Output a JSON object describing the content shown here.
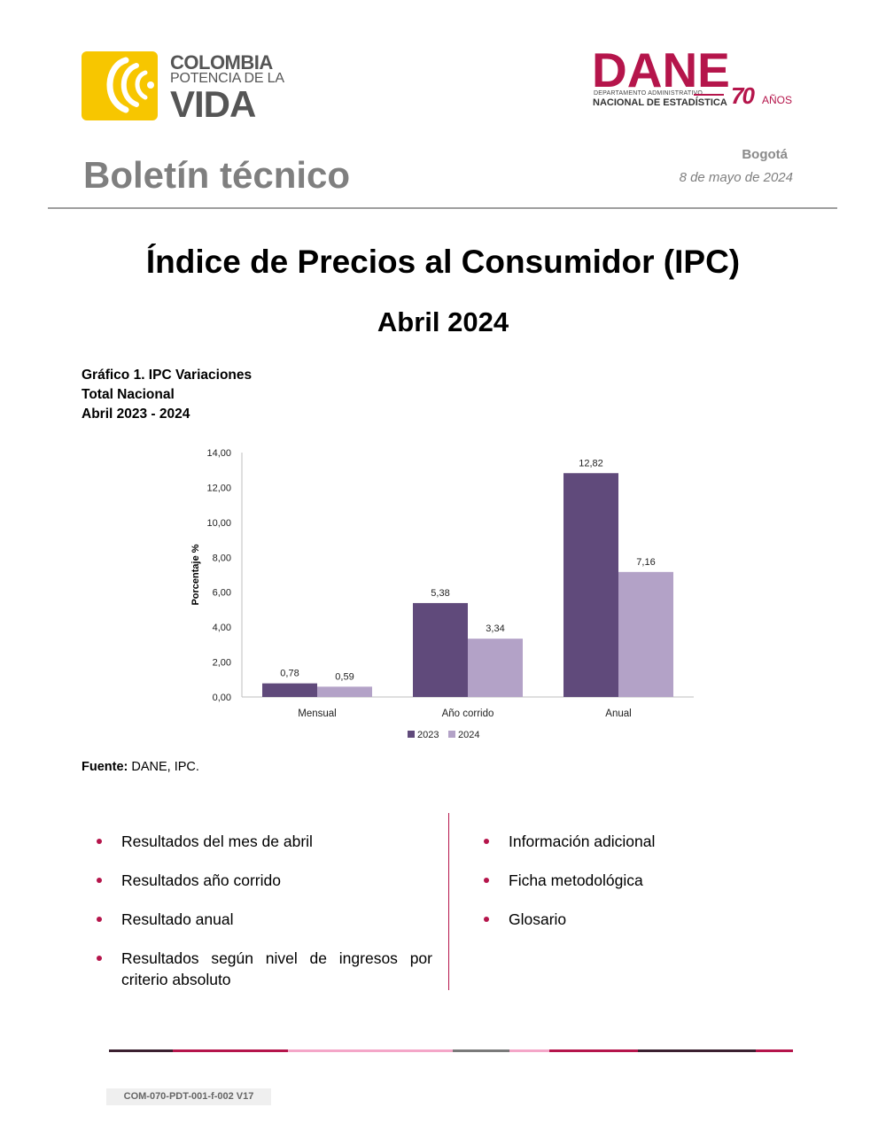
{
  "header": {
    "colombia_logo": {
      "line1": "COLOMBIA",
      "line2": "POTENCIA DE LA",
      "line3": "VIDA"
    },
    "dane_logo": {
      "name": "DANE",
      "line1": "DEPARTAMENTO ADMINISTRATIVO",
      "line2": "NACIONAL DE ESTADÍSTICA",
      "years": "70",
      "years_label": "AÑOS"
    },
    "bulletin_label": "Boletín técnico",
    "city": "Bogotá",
    "date": "8 de mayo de 2024"
  },
  "title": "Índice de Precios al Consumidor (IPC)",
  "subtitle": "Abril 2024",
  "chart_caption": {
    "line1": "Gráfico 1. IPC Variaciones",
    "line2": "Total Nacional",
    "line3": "Abril 2023 - 2024"
  },
  "chart_data": {
    "type": "bar",
    "categories": [
      "Mensual",
      "Año corrido",
      "Anual"
    ],
    "series": [
      {
        "name": "2023",
        "values": [
          0.78,
          5.38,
          12.82
        ],
        "labels": [
          "0,78",
          "5,38",
          "12,82"
        ],
        "color": "#604a7b"
      },
      {
        "name": "2024",
        "values": [
          0.59,
          3.34,
          7.16
        ],
        "labels": [
          "0,59",
          "3,34",
          "7,16"
        ],
        "color": "#b3a2c7"
      }
    ],
    "ylabel": "Porcentaje %",
    "ylim": [
      0,
      14
    ],
    "yticks": [
      0,
      2,
      4,
      6,
      8,
      10,
      12,
      14
    ],
    "ytick_labels": [
      "0,00",
      "2,00",
      "4,00",
      "6,00",
      "8,00",
      "10,00",
      "12,00",
      "14,00"
    ],
    "grid": false,
    "legend": "bottom"
  },
  "source": {
    "label": "Fuente:",
    "text": " DANE, IPC."
  },
  "contents_left": [
    "Resultados del mes de abril",
    "Resultados año corrido",
    "Resultado anual",
    "Resultados según nivel de ingresos por criterio absoluto"
  ],
  "contents_right": [
    "Información adicional",
    "Ficha metodológica",
    "Glosario"
  ],
  "colors": {
    "accent": "#b5154b",
    "gray_title": "#7f7f7f"
  },
  "footer": {
    "form_code": "COM-070-PDT-001-f-002 V17"
  }
}
